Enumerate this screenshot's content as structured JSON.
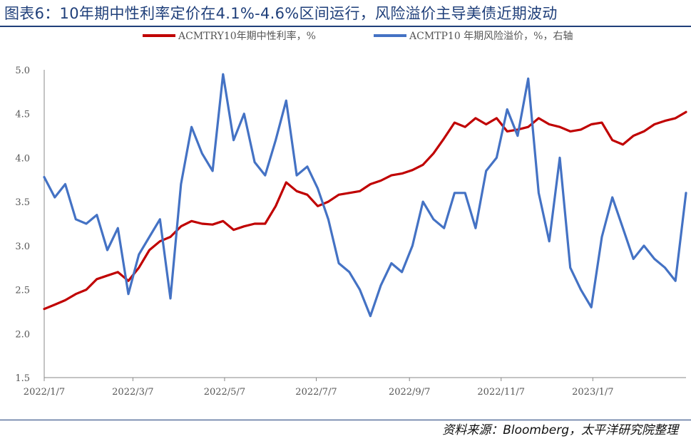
{
  "header": {
    "title": "图表6：10年期中性利率定价在4.1%-4.6%区间运行，风险溢价主导美债近期波动"
  },
  "footer": {
    "source": "资料来源：Bloomberg，太平洋研究院整理"
  },
  "colors": {
    "series_red": "#c00000",
    "series_blue": "#4472c4",
    "title_blue": "#1f3f7a"
  },
  "chart_data": {
    "type": "line",
    "title": "",
    "xlabel": "",
    "ylabel": "",
    "ylim": [
      1.5,
      5.0
    ],
    "yticks": [
      "1.5",
      "2.0",
      "2.5",
      "3.0",
      "3.5",
      "4.0",
      "4.5",
      "5.0"
    ],
    "xlim": [
      "2022-01-07",
      "2023-03-10"
    ],
    "xticks": [
      "2022/1/7",
      "2022/3/7",
      "2022/5/7",
      "2022/7/7",
      "2022/9/7",
      "2022/11/7",
      "2023/1/7"
    ],
    "legend_position": "top",
    "grid": false,
    "series": [
      {
        "name": "ACMTRY10年期中性利率，%",
        "color": "#c00000",
        "x": [
          "2022-01-07",
          "2022-01-14",
          "2022-01-21",
          "2022-01-28",
          "2022-02-04",
          "2022-02-11",
          "2022-02-18",
          "2022-02-25",
          "2022-03-04",
          "2022-03-11",
          "2022-03-18",
          "2022-03-25",
          "2022-04-01",
          "2022-04-08",
          "2022-04-15",
          "2022-04-22",
          "2022-04-29",
          "2022-05-06",
          "2022-05-13",
          "2022-05-20",
          "2022-05-27",
          "2022-06-03",
          "2022-06-10",
          "2022-06-17",
          "2022-06-24",
          "2022-07-01",
          "2022-07-08",
          "2022-07-15",
          "2022-07-22",
          "2022-07-29",
          "2022-08-05",
          "2022-08-12",
          "2022-08-19",
          "2022-08-26",
          "2022-09-02",
          "2022-09-09",
          "2022-09-16",
          "2022-09-23",
          "2022-09-30",
          "2022-10-07",
          "2022-10-14",
          "2022-10-21",
          "2022-10-28",
          "2022-11-04",
          "2022-11-11",
          "2022-11-18",
          "2022-11-25",
          "2022-12-02",
          "2022-12-09",
          "2022-12-16",
          "2022-12-23",
          "2022-12-30",
          "2023-01-06",
          "2023-01-13",
          "2023-01-20",
          "2023-01-27",
          "2023-02-03",
          "2023-02-10",
          "2023-02-17",
          "2023-02-24",
          "2023-03-03",
          "2023-03-10"
        ],
        "values": [
          2.28,
          2.33,
          2.38,
          2.45,
          2.5,
          2.62,
          2.66,
          2.7,
          2.6,
          2.75,
          2.95,
          3.05,
          3.1,
          3.22,
          3.28,
          3.25,
          3.24,
          3.28,
          3.18,
          3.22,
          3.25,
          3.25,
          3.45,
          3.72,
          3.62,
          3.58,
          3.45,
          3.5,
          3.58,
          3.6,
          3.62,
          3.7,
          3.74,
          3.8,
          3.82,
          3.86,
          3.92,
          4.05,
          4.22,
          4.4,
          4.35,
          4.45,
          4.38,
          4.45,
          4.3,
          4.32,
          4.35,
          4.45,
          4.38,
          4.35,
          4.3,
          4.32,
          4.38,
          4.4,
          4.2,
          4.15,
          4.25,
          4.3,
          4.38,
          4.42,
          4.45,
          4.52
        ]
      },
      {
        "name": "ACMTP10 年期风险溢价，%，右轴",
        "color": "#4472c4",
        "x": [
          "2022-01-07",
          "2022-01-14",
          "2022-01-21",
          "2022-01-28",
          "2022-02-04",
          "2022-02-11",
          "2022-02-18",
          "2022-02-25",
          "2022-03-04",
          "2022-03-11",
          "2022-03-18",
          "2022-03-25",
          "2022-04-01",
          "2022-04-08",
          "2022-04-15",
          "2022-04-22",
          "2022-04-29",
          "2022-05-06",
          "2022-05-13",
          "2022-05-20",
          "2022-05-27",
          "2022-06-03",
          "2022-06-10",
          "2022-06-17",
          "2022-06-24",
          "2022-07-01",
          "2022-07-08",
          "2022-07-15",
          "2022-07-22",
          "2022-07-29",
          "2022-08-05",
          "2022-08-12",
          "2022-08-19",
          "2022-08-26",
          "2022-09-02",
          "2022-09-09",
          "2022-09-16",
          "2022-09-23",
          "2022-09-30",
          "2022-10-07",
          "2022-10-14",
          "2022-10-21",
          "2022-10-28",
          "2022-11-04",
          "2022-11-11",
          "2022-11-18",
          "2022-11-25",
          "2022-12-02",
          "2022-12-09",
          "2022-12-16",
          "2022-12-23",
          "2022-12-30",
          "2023-01-06",
          "2023-01-13",
          "2023-01-20",
          "2023-01-27",
          "2023-02-03",
          "2023-02-10",
          "2023-02-17",
          "2023-02-24",
          "2023-03-03",
          "2023-03-10"
        ],
        "values": [
          3.78,
          3.55,
          3.7,
          3.3,
          3.25,
          3.35,
          2.95,
          3.2,
          2.45,
          2.9,
          3.1,
          3.3,
          2.4,
          3.7,
          4.35,
          4.05,
          3.85,
          4.95,
          4.2,
          4.5,
          3.95,
          3.8,
          4.2,
          4.65,
          3.8,
          3.9,
          3.65,
          3.3,
          2.8,
          2.7,
          2.5,
          2.2,
          2.55,
          2.8,
          2.7,
          3.0,
          3.5,
          3.3,
          3.2,
          3.6,
          3.6,
          3.2,
          3.85,
          4.0,
          4.55,
          4.25,
          4.9,
          3.6,
          3.05,
          4.0,
          2.75,
          2.5,
          2.3,
          3.1,
          3.55,
          3.2,
          2.85,
          3.0,
          2.85,
          2.75,
          2.6,
          3.6
        ]
      }
    ]
  }
}
